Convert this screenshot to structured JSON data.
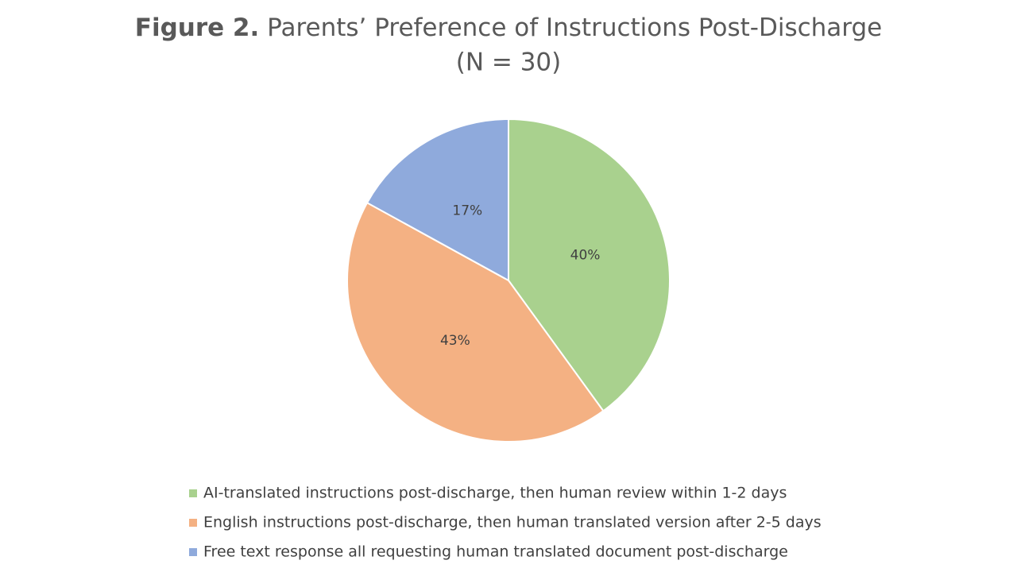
{
  "chart_data": {
    "type": "pie",
    "title_prefix": "Figure 2.",
    "title": "Parents’ Preference of Instructions Post-Discharge",
    "subtitle": "(N = 30)",
    "categories": [
      "AI-translated instructions post-discharge, then human review within 1-2 days",
      "English instructions post-discharge, then human translated version after 2-5 days",
      "Free text response all requesting human translated document post-discharge"
    ],
    "values": [
      40,
      43,
      17
    ],
    "value_labels": [
      "40%",
      "43%",
      "17%"
    ],
    "colors": [
      "#a9d18e",
      "#f4b183",
      "#8faadc"
    ],
    "legend": "bottom"
  }
}
